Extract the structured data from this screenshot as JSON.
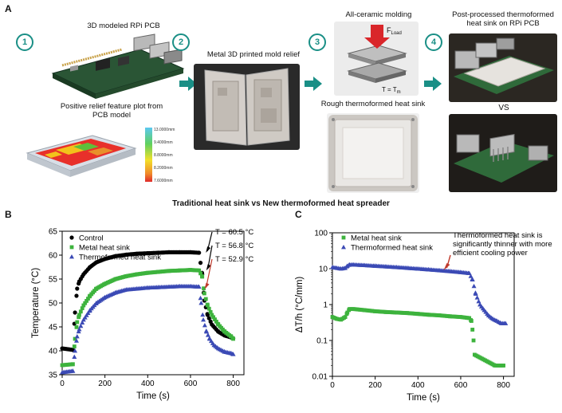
{
  "panel_a": {
    "letter": "A",
    "steps": [
      "1",
      "2",
      "3",
      "4"
    ],
    "captions": {
      "pcb_model": "3D modeled RPi PCB",
      "relief_plot": "Positive relief feature plot from PCB model",
      "mold_relief": "Metal 3D printed mold relief",
      "molding": "All-ceramic molding",
      "rough_heat_sink": "Rough thermoformed heat sink",
      "post_processed": "Post-processed thermoformed heat sink on RPi PCB",
      "vs": "VS"
    },
    "colorbar_ticks": [
      "13.0000mm",
      "9.4000mm",
      "8.8000mm",
      "8.2000mm",
      "7.6000mm"
    ],
    "molding_labels": {
      "force": "F",
      "force_sub": "Load",
      "temp": "T = T",
      "temp_sub": "m"
    }
  },
  "figure_title": "Traditional heat sink vs New thermoformed heat spreader",
  "chart_data": [
    {
      "panel": "B",
      "type": "scatter",
      "xlabel": "Time (s)",
      "ylabel": "Temperature (°C)",
      "xlim": [
        0,
        850
      ],
      "ylim": [
        35,
        65
      ],
      "xticks": [
        0,
        200,
        400,
        600,
        800
      ],
      "yticks": [
        35,
        40,
        45,
        50,
        55,
        60,
        65
      ],
      "legend_position": "top-left",
      "series": [
        {
          "name": "Control",
          "color": "#000000",
          "marker": "circle",
          "x": [
            0,
            50,
            60,
            70,
            80,
            100,
            130,
            160,
            200,
            250,
            300,
            350,
            400,
            450,
            500,
            550,
            600,
            640,
            655,
            665,
            680,
            700,
            730,
            760,
            790,
            800
          ],
          "y": [
            40.5,
            40.2,
            48,
            53,
            54.5,
            56,
            57.5,
            58.5,
            59.2,
            59.8,
            60.1,
            60.3,
            60.4,
            60.5,
            60.6,
            60.6,
            60.6,
            60.5,
            56,
            50.5,
            47.5,
            45.5,
            44,
            43.2,
            42.8,
            42.6
          ]
        },
        {
          "name": "Metal heat sink",
          "color": "#3db33d",
          "marker": "square",
          "x": [
            0,
            50,
            60,
            70,
            80,
            100,
            130,
            160,
            200,
            250,
            300,
            350,
            400,
            450,
            500,
            550,
            600,
            640,
            655,
            665,
            680,
            700,
            730,
            760,
            790,
            800
          ],
          "y": [
            37,
            37.2,
            42.5,
            46,
            47.5,
            49.5,
            51.5,
            53,
            54,
            55,
            55.6,
            56,
            56.3,
            56.5,
            56.7,
            56.8,
            56.9,
            56.8,
            55.5,
            52,
            49.5,
            47.5,
            45.5,
            44,
            43,
            42.5
          ]
        },
        {
          "name": "Thermoformed heat sink",
          "color": "#3b4ab5",
          "marker": "triangle",
          "x": [
            0,
            50,
            60,
            70,
            80,
            100,
            130,
            160,
            200,
            250,
            300,
            350,
            400,
            450,
            500,
            550,
            600,
            640,
            650,
            660,
            675,
            690,
            710,
            730,
            760,
            790,
            800
          ],
          "y": [
            35.5,
            35.8,
            40,
            43,
            44.5,
            46.5,
            48.5,
            50,
            51.2,
            52.2,
            52.8,
            53,
            53.2,
            53.3,
            53.4,
            53.5,
            53.5,
            53.4,
            50,
            46.5,
            44,
            42.5,
            41.2,
            40.5,
            39.8,
            39.5,
            39.3
          ]
        }
      ],
      "annotations": [
        "T = 60.5 °C",
        "T = 56.8 °C",
        "T = 52.9 °C"
      ]
    },
    {
      "panel": "C",
      "type": "scatter",
      "xlabel": "Time (s)",
      "ylabel": "ΔT/h (°C/mm)",
      "yscale": "log",
      "xlim": [
        0,
        850
      ],
      "ylim": [
        0.01,
        100
      ],
      "xticks": [
        0,
        200,
        400,
        600,
        800
      ],
      "yticks": [
        0.01,
        0.1,
        1,
        10,
        100
      ],
      "ytick_labels": [
        "0.01",
        "0.1",
        "1",
        "10",
        "100"
      ],
      "legend_position": "top-left",
      "series": [
        {
          "name": "Metal heat sink",
          "color": "#3db33d",
          "marker": "square",
          "x": [
            0,
            20,
            40,
            60,
            70,
            80,
            100,
            150,
            200,
            250,
            300,
            350,
            400,
            450,
            500,
            550,
            600,
            640,
            650,
            655,
            660,
            665,
            760,
            780,
            800
          ],
          "y": [
            0.45,
            0.4,
            0.38,
            0.45,
            0.6,
            0.75,
            0.75,
            0.7,
            0.65,
            0.62,
            0.6,
            0.58,
            0.55,
            0.52,
            0.5,
            0.47,
            0.45,
            0.42,
            0.35,
            0.2,
            0.1,
            0.04,
            0.02,
            0.02,
            0.02
          ]
        },
        {
          "name": "Thermoformed heat sink",
          "color": "#3b4ab5",
          "marker": "triangle",
          "x": [
            0,
            20,
            40,
            60,
            70,
            80,
            100,
            150,
            200,
            250,
            300,
            350,
            400,
            450,
            500,
            550,
            600,
            640,
            655,
            670,
            690,
            710,
            730,
            750,
            770,
            790,
            810
          ],
          "y": [
            11,
            10.5,
            10,
            10.5,
            12,
            13,
            13,
            12.5,
            12,
            11.5,
            11,
            10.5,
            10,
            9.5,
            9,
            8.5,
            8,
            7.5,
            5,
            2,
            1,
            0.7,
            0.5,
            0.4,
            0.35,
            0.3,
            0.3
          ]
        }
      ],
      "annotations": [
        "Thermoformed heat sink is significantly thinner with more efficient cooling power"
      ]
    }
  ],
  "colors": {
    "accent_teal": "#1a8f86",
    "red_arrow": "#c0392b"
  }
}
